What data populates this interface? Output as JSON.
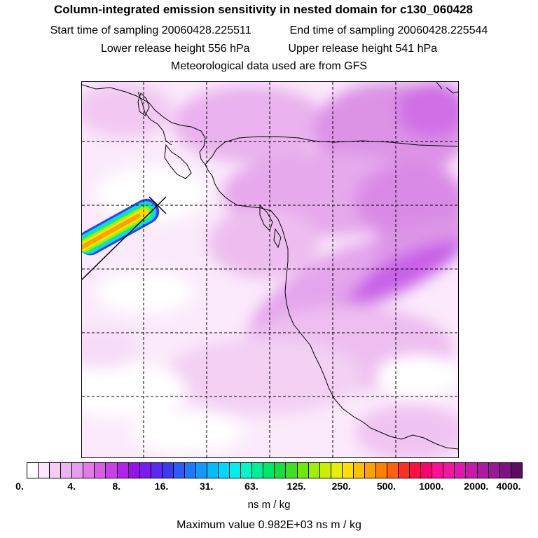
{
  "title": {
    "main": "Column-integrated emission sensitivity in nested domain for c130_060428",
    "start_label": "Start time of sampling",
    "start_value": "20060428.225511",
    "end_label": "End time of sampling",
    "end_value": "20060428.225544",
    "lower_label": "Lower release height",
    "lower_value": "556 hPa",
    "upper_label": "Upper release height",
    "upper_value": "541 hPa",
    "met": "Meteorological data used are from GFS"
  },
  "colorbar": {
    "ticks": [
      "0.",
      "4.",
      "8.",
      "16.",
      "31.",
      "63.",
      "125.",
      "250.",
      "500.",
      "1000.",
      "2000.",
      "4000."
    ],
    "colors": [
      "#ffffff",
      "#fbe6fb",
      "#f6cdf6",
      "#eeb4f1",
      "#e79ded",
      "#e07be8",
      "#d65fe5",
      "#c840e8",
      "#b222ea",
      "#9a10ee",
      "#7a1cf0",
      "#5a2af2",
      "#3a3af4",
      "#2b5cf8",
      "#1a7cfb",
      "#0f9cfd",
      "#07bcfe",
      "#00d8ff",
      "#00f0ee",
      "#00f8c8",
      "#00f098",
      "#00e86a",
      "#10e040",
      "#40e020",
      "#70e808",
      "#a0f000",
      "#c8f000",
      "#e8f000",
      "#ffe000",
      "#ffc000",
      "#ffa000",
      "#ff8000",
      "#ff6010",
      "#ff3020",
      "#ff1040",
      "#ff0070",
      "#ff1090",
      "#f018a0",
      "#e018b0",
      "#c818b0",
      "#b018a8",
      "#981898",
      "#7c1480",
      "#5c0c60"
    ],
    "unit": "ns m / kg"
  },
  "max_value_text": "Maximum value  0.982E+03 ns m / kg",
  "map": {
    "release_point_marker": "release-point-x-icon",
    "plume_colors": [
      "#3a3af4",
      "#00d8ff",
      "#00f098",
      "#a0f000",
      "#ffe000",
      "#ffa000"
    ]
  }
}
